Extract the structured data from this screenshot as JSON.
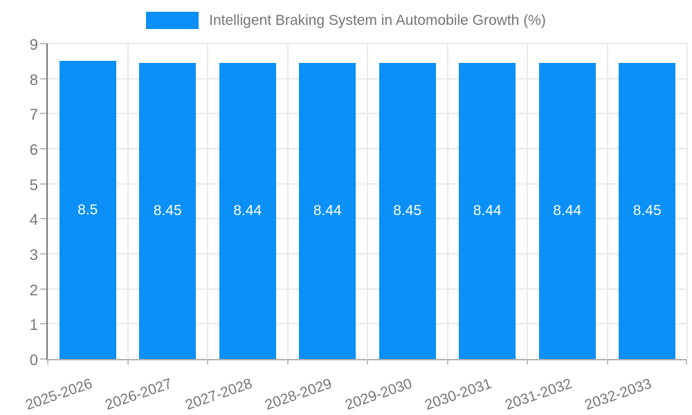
{
  "chart_data": {
    "type": "bar",
    "title": "Intelligent Braking System in Automobile Growth (%)",
    "legend_position": "top",
    "legend_entries": [
      "Intelligent Braking System in Automobile Growth (%)"
    ],
    "categories": [
      "2025-2026",
      "2026-2027",
      "2027-2028",
      "2028-2029",
      "2029-2030",
      "2030-2031",
      "2031-2032",
      "2032-2033"
    ],
    "values": [
      8.5,
      8.45,
      8.44,
      8.44,
      8.45,
      8.44,
      8.44,
      8.45
    ],
    "value_labels": [
      "8.5",
      "8.45",
      "8.44",
      "8.44",
      "8.45",
      "8.44",
      "8.44",
      "8.45"
    ],
    "xlabel": "",
    "ylabel": "",
    "ylim": [
      0,
      9
    ],
    "ytick_step": 1,
    "yticks": [
      "0",
      "1",
      "2",
      "3",
      "4",
      "5",
      "6",
      "7",
      "8",
      "9"
    ],
    "grid": true,
    "bar_width_frac": 0.71,
    "bar_color": "#0a90f7",
    "value_label_color": "#ffffff",
    "axis_text_color": "#757575",
    "gridline_color": "#e9e9e9"
  }
}
